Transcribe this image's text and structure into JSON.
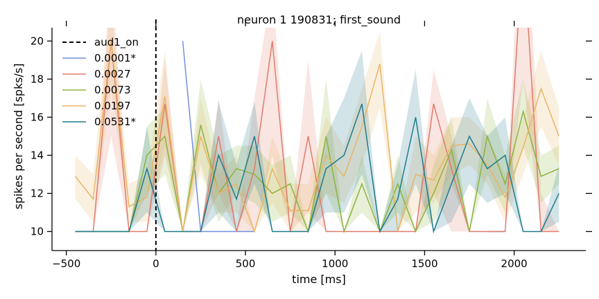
{
  "chart_data": {
    "type": "line",
    "title": "neuron 1 190831; first_sound",
    "xlabel": "time [ms]",
    "ylabel": "spikes per second [spks/s]",
    "xlim": [
      -580,
      2400
    ],
    "ylim": [
      9,
      20.7
    ],
    "xticks": [
      -500,
      0,
      500,
      1000,
      1500,
      2000
    ],
    "yticks": [
      10,
      12,
      14,
      16,
      18,
      20
    ],
    "grid": false,
    "legend_position": "top-left",
    "vline": {
      "name": "aud1_on",
      "x": 0,
      "color": "#000000",
      "style": "dashed"
    },
    "series": [
      {
        "name": "0.0001*",
        "color": "#6f8fdd",
        "points": [
          [
            150,
            20
          ],
          [
            250,
            10
          ],
          [
            550,
            10
          ]
        ],
        "points2": [
          [
            1850,
            10
          ],
          [
            1950,
            10
          ]
        ]
      },
      {
        "name": "0.0027",
        "color": "#e07b6a",
        "x": [
          -450,
          -350,
          -250,
          -150,
          -50,
          50,
          150,
          250,
          350,
          450,
          550,
          650,
          750,
          850,
          950,
          1050,
          1150,
          1250,
          1350,
          1450,
          1550,
          1650,
          1750,
          1850,
          1950,
          2050,
          2150,
          2250
        ],
        "y": [
          10,
          10,
          20,
          10,
          10,
          16.7,
          10,
          10,
          15,
          10,
          13.3,
          20,
          10,
          15,
          10,
          10,
          10,
          10,
          10,
          10,
          16.7,
          13.3,
          10,
          10,
          10,
          25,
          10,
          10
        ],
        "lo": [
          10,
          10,
          15,
          10,
          10,
          14,
          10,
          10,
          12,
          10,
          10,
          14,
          10,
          11,
          10,
          10,
          10,
          10,
          10,
          10,
          12,
          10,
          10,
          10,
          10,
          18,
          10,
          10
        ],
        "hi": [
          10,
          10,
          24,
          10,
          10,
          19,
          10,
          10,
          17,
          10,
          17,
          23,
          10,
          19,
          10,
          10,
          10,
          10,
          10,
          10,
          18.5,
          15,
          10,
          10,
          10,
          30,
          12,
          10
        ]
      },
      {
        "name": "0.0073",
        "color": "#8db33e",
        "x": [
          -450,
          -350,
          -250,
          -150,
          -50,
          50,
          150,
          250,
          350,
          450,
          550,
          650,
          750,
          850,
          950,
          1050,
          1150,
          1250,
          1350,
          1450,
          1550,
          1650,
          1750,
          1850,
          1950,
          2050,
          2150,
          2250
        ],
        "y": [
          10,
          10,
          10,
          10,
          14,
          15,
          10,
          15.6,
          12,
          13.3,
          13,
          12,
          12.5,
          10,
          15,
          10,
          12.5,
          10,
          12.5,
          10,
          12,
          14.3,
          10,
          15,
          12.5,
          16.3,
          12.9,
          13.3
        ],
        "lo": [
          10,
          10,
          10,
          10,
          12,
          13,
          10,
          13.5,
          10.5,
          12,
          11.5,
          10.5,
          11,
          10,
          12,
          10,
          11,
          10,
          11,
          10,
          10.5,
          12.5,
          10,
          13,
          11,
          14.5,
          11.5,
          12.5
        ],
        "hi": [
          10,
          10,
          10,
          10,
          15.5,
          16.5,
          10,
          18,
          14,
          14.5,
          14.5,
          13.5,
          14,
          10,
          18,
          10,
          14,
          10,
          14,
          10,
          13.5,
          16,
          10,
          17,
          14,
          18,
          14,
          14.5
        ]
      },
      {
        "name": "0.0197",
        "color": "#e8b566",
        "x": [
          -450,
          -350,
          -250,
          -150,
          -50,
          50,
          150,
          250,
          350,
          450,
          550,
          650,
          750,
          850,
          950,
          1050,
          1150,
          1250,
          1350,
          1450,
          1550,
          1650,
          1750,
          1850,
          1950,
          2050,
          2150,
          2250
        ],
        "y": [
          12.9,
          11.7,
          20,
          11.3,
          11.8,
          17.1,
          10,
          15,
          12,
          12.5,
          10,
          13.3,
          11.1,
          11.1,
          14,
          12.9,
          15.5,
          18.8,
          10,
          13,
          12.7,
          14.5,
          14.6,
          13.5,
          11.8,
          14.4,
          17.5,
          15
        ],
        "lo": [
          11.7,
          10.5,
          17.5,
          10.5,
          10.5,
          14.5,
          10,
          13,
          11,
          11,
          10,
          11.5,
          10,
          10,
          12,
          11.5,
          13.5,
          16.5,
          10,
          11,
          11.5,
          13,
          13.5,
          12.5,
          10.5,
          13,
          15.5,
          13.5
        ],
        "hi": [
          14,
          13,
          22,
          12.5,
          13,
          19.5,
          10,
          17,
          13,
          14,
          10,
          15,
          12.5,
          12.5,
          16,
          14.5,
          17.5,
          20.5,
          10,
          15,
          14,
          16,
          16,
          15,
          13,
          16,
          19.5,
          16.5
        ]
      },
      {
        "name": "0.0531*",
        "color": "#1f7a8c",
        "x": [
          -450,
          -350,
          -250,
          -150,
          -50,
          50,
          150,
          250,
          350,
          450,
          550,
          650,
          750,
          850,
          950,
          1050,
          1150,
          1250,
          1350,
          1450,
          1550,
          1650,
          1750,
          1850,
          1950,
          2050,
          2150,
          2250
        ],
        "y": [
          10,
          10,
          10,
          10,
          13.3,
          10,
          10,
          10,
          14,
          11.7,
          15,
          10,
          10,
          10,
          13.3,
          14,
          16.7,
          10,
          11.7,
          16,
          10,
          12.5,
          15,
          13.3,
          14,
          10,
          10,
          12
        ],
        "lo": [
          10,
          10,
          10,
          10,
          11,
          10,
          10,
          10,
          11,
          10,
          12.5,
          10,
          10,
          10,
          11,
          11,
          13,
          10,
          10,
          12.5,
          10,
          10.5,
          12.5,
          11.5,
          12,
          10,
          10,
          10.5
        ],
        "hi": [
          10,
          10,
          10,
          10,
          15.5,
          10,
          10,
          10,
          16.8,
          13.5,
          16.8,
          10,
          10,
          10,
          15,
          17,
          19.5,
          10,
          13.5,
          18.5,
          10,
          14.5,
          17,
          15,
          16,
          10,
          10,
          13.5
        ]
      }
    ]
  }
}
